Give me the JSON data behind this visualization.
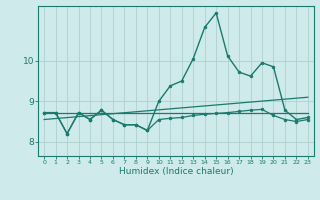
{
  "xlabel": "Humidex (Indice chaleur)",
  "background_color": "#ceeaea",
  "grid_color": "#b0d0d0",
  "line_color": "#1a7a6e",
  "x_ticks": [
    0,
    1,
    2,
    3,
    4,
    5,
    6,
    7,
    8,
    9,
    10,
    11,
    12,
    13,
    14,
    15,
    16,
    17,
    18,
    19,
    20,
    21,
    22,
    23
  ],
  "y_ticks": [
    8,
    9,
    10
  ],
  "ylim": [
    7.65,
    11.35
  ],
  "xlim": [
    -0.5,
    23.5
  ],
  "series": [
    {
      "x": [
        0,
        1,
        2,
        3,
        4,
        5,
        6,
        7,
        8,
        9,
        10,
        11,
        12,
        13,
        14,
        15,
        16,
        17,
        18,
        19,
        20,
        21,
        22,
        23
      ],
      "y": [
        8.72,
        8.72,
        8.2,
        8.72,
        8.55,
        8.78,
        8.55,
        8.42,
        8.42,
        8.28,
        9.0,
        9.38,
        9.5,
        10.05,
        10.82,
        11.18,
        10.12,
        9.72,
        9.62,
        9.95,
        9.85,
        8.78,
        8.55,
        8.6
      ],
      "marker": true,
      "linewidth": 1.0,
      "markersize": 2.0
    },
    {
      "x": [
        0,
        23
      ],
      "y": [
        8.72,
        8.72
      ],
      "marker": false,
      "linewidth": 0.9,
      "markersize": 0
    },
    {
      "x": [
        0,
        23
      ],
      "y": [
        8.55,
        9.1
      ],
      "marker": false,
      "linewidth": 0.9,
      "markersize": 0
    },
    {
      "x": [
        0,
        1,
        2,
        3,
        4,
        5,
        6,
        7,
        8,
        9,
        10,
        11,
        12,
        13,
        14,
        15,
        16,
        17,
        18,
        19,
        20,
        21,
        22,
        23
      ],
      "y": [
        8.72,
        8.72,
        8.2,
        8.72,
        8.55,
        8.78,
        8.55,
        8.42,
        8.42,
        8.28,
        8.55,
        8.58,
        8.6,
        8.65,
        8.68,
        8.7,
        8.72,
        8.75,
        8.78,
        8.8,
        8.65,
        8.55,
        8.5,
        8.55
      ],
      "marker": true,
      "linewidth": 0.9,
      "markersize": 2.0
    }
  ]
}
